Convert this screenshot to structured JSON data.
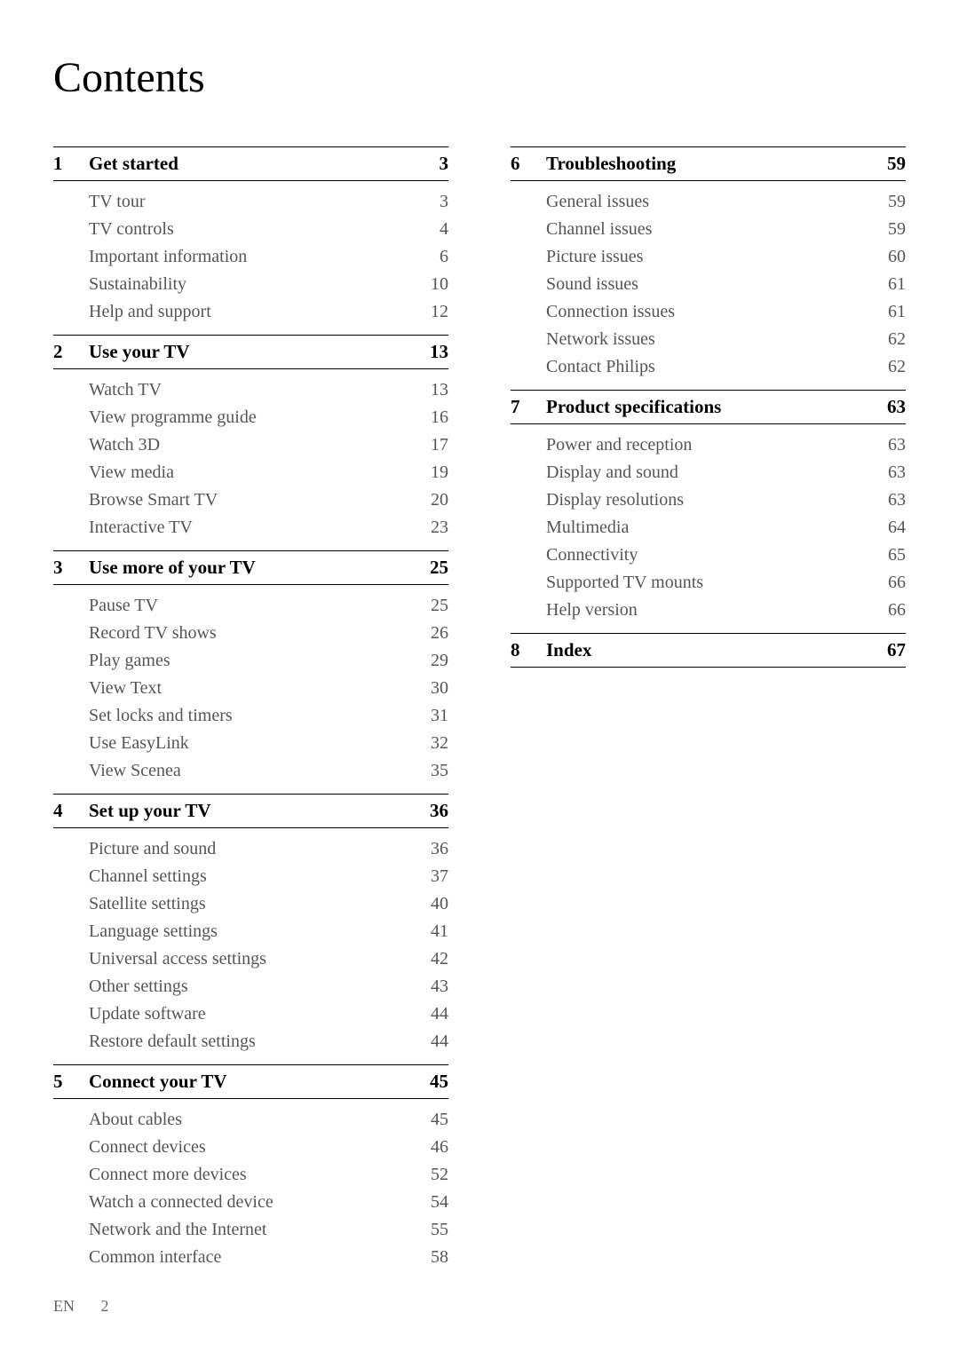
{
  "title": "Contents",
  "footer": {
    "lang": "EN",
    "page": "2"
  },
  "columns": [
    {
      "sections": [
        {
          "num": "1",
          "title": "Get started",
          "page": "3",
          "items": [
            {
              "label": "TV tour",
              "page": "3"
            },
            {
              "label": "TV controls",
              "page": "4"
            },
            {
              "label": "Important information",
              "page": "6"
            },
            {
              "label": "Sustainability",
              "page": "10"
            },
            {
              "label": "Help and support",
              "page": "12"
            }
          ]
        },
        {
          "num": "2",
          "title": "Use your TV",
          "page": "13",
          "items": [
            {
              "label": "Watch TV",
              "page": "13"
            },
            {
              "label": "View programme guide",
              "page": "16"
            },
            {
              "label": "Watch 3D",
              "page": "17"
            },
            {
              "label": "View media",
              "page": "19"
            },
            {
              "label": "Browse Smart TV",
              "page": "20"
            },
            {
              "label": "Interactive TV",
              "page": "23"
            }
          ]
        },
        {
          "num": "3",
          "title": "Use more of your TV",
          "page": "25",
          "items": [
            {
              "label": "Pause TV",
              "page": "25"
            },
            {
              "label": "Record TV shows",
              "page": "26"
            },
            {
              "label": "Play games",
              "page": "29"
            },
            {
              "label": "View Text",
              "page": "30"
            },
            {
              "label": "Set locks and timers",
              "page": "31"
            },
            {
              "label": "Use EasyLink",
              "page": "32"
            },
            {
              "label": "View Scenea",
              "page": "35"
            }
          ]
        },
        {
          "num": "4",
          "title": "Set up your TV",
          "page": "36",
          "items": [
            {
              "label": "Picture and sound",
              "page": "36"
            },
            {
              "label": "Channel settings",
              "page": "37"
            },
            {
              "label": "Satellite settings",
              "page": "40"
            },
            {
              "label": "Language settings",
              "page": "41"
            },
            {
              "label": "Universal access settings",
              "page": "42"
            },
            {
              "label": "Other settings",
              "page": "43"
            },
            {
              "label": "Update software",
              "page": "44"
            },
            {
              "label": "Restore default settings",
              "page": "44"
            }
          ]
        },
        {
          "num": "5",
          "title": "Connect your TV",
          "page": "45",
          "items": [
            {
              "label": "About cables",
              "page": "45"
            },
            {
              "label": "Connect devices",
              "page": "46"
            },
            {
              "label": "Connect more devices",
              "page": "52"
            },
            {
              "label": "Watch a connected device",
              "page": "54"
            },
            {
              "label": "Network and the Internet",
              "page": "55"
            },
            {
              "label": "Common interface",
              "page": "58"
            }
          ]
        }
      ]
    },
    {
      "sections": [
        {
          "num": "6",
          "title": "Troubleshooting",
          "page": "59",
          "items": [
            {
              "label": "General issues",
              "page": "59"
            },
            {
              "label": "Channel issues",
              "page": "59"
            },
            {
              "label": "Picture issues",
              "page": "60"
            },
            {
              "label": "Sound issues",
              "page": "61"
            },
            {
              "label": "Connection issues",
              "page": "61"
            },
            {
              "label": "Network issues",
              "page": "62"
            },
            {
              "label": "Contact Philips",
              "page": "62"
            }
          ]
        },
        {
          "num": "7",
          "title": "Product specifications",
          "page": "63",
          "items": [
            {
              "label": "Power and reception",
              "page": "63"
            },
            {
              "label": "Display and sound",
              "page": "63"
            },
            {
              "label": "Display resolutions",
              "page": "63"
            },
            {
              "label": "Multimedia",
              "page": "64"
            },
            {
              "label": "Connectivity",
              "page": "65"
            },
            {
              "label": "Supported TV mounts",
              "page": "66"
            },
            {
              "label": "Help version",
              "page": "66"
            }
          ]
        },
        {
          "num": "8",
          "title": "Index",
          "page": "67",
          "items": []
        }
      ]
    }
  ]
}
